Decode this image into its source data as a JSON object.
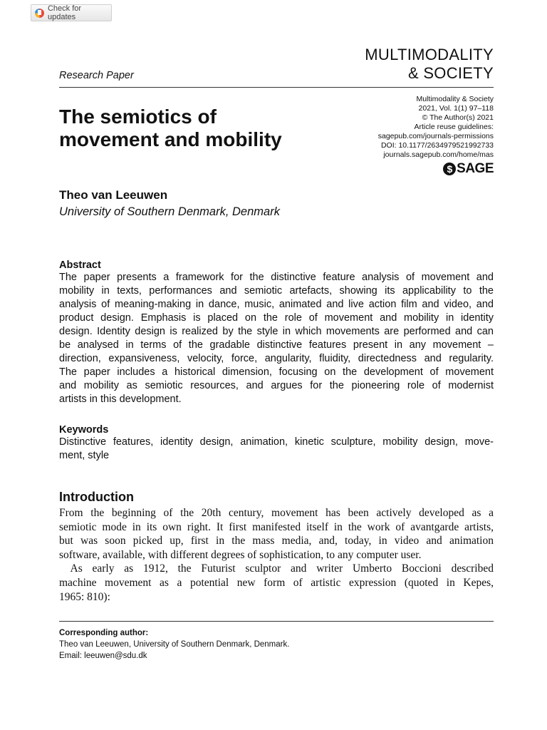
{
  "badge": {
    "label": "Check for updates",
    "icon": "check-for-updates-icon"
  },
  "journal": {
    "line1": "MULTIMODALITY",
    "line2": "& SOCIETY"
  },
  "article_type": "Research Paper",
  "meta": {
    "lines": [
      "Multimodality & Society",
      "2021, Vol. 1(1) 97–118",
      "© The Author(s) 2021",
      "Article reuse guidelines:",
      "sagepub.com/journals-permissions",
      "DOI: 10.1177/2634979521992733",
      "journals.sagepub.com/home/mas"
    ],
    "publisher_logo": "SAGE"
  },
  "title": {
    "lines": [
      "The semiotics of",
      "movement and mobility"
    ]
  },
  "author": {
    "name": "Theo van Leeuwen",
    "affiliation": "University of Southern Denmark, Denmark"
  },
  "abstract": {
    "heading": "Abstract",
    "lines": [
      "The paper presents a framework for the distinctive feature analysis of movement and",
      "mobility in texts, performances and semiotic artefacts, showing its applicability to the",
      "analysis of meaning-making in dance, music, animated and live action film and video, and",
      "product design. Emphasis is placed on the role of movement and mobility in identity",
      "design. Identity design is realized by the style in which movements are performed and can",
      "be analysed in terms of the gradable distinctive features present in any movement –",
      "direction, expansiveness, velocity, force, angularity, fluidity, directedness and regularity.",
      "The paper includes a historical dimension, focusing on the development of movement",
      "and mobility as semiotic resources, and argues for the pioneering role of modernist",
      "artists in this development."
    ]
  },
  "keywords": {
    "heading": "Keywords",
    "lines": [
      "Distinctive features, identity design, animation, kinetic sculpture, mobility design, move-",
      "ment, style"
    ]
  },
  "introduction": {
    "heading": "Introduction",
    "lines": [
      "From the beginning of the 20th century, movement has been actively developed as a",
      "semiotic mode in its own right. It first manifested itself in the work of avantgarde artists,",
      "but was soon picked up, first in the mass media, and, today, in video and animation",
      "software, available, with different degrees of sophistication, to any computer user.",
      " As early as 1912, the Futurist sculptor and writer Umberto Boccioni described",
      "machine movement as a potential new form of artistic expression (quoted in Kepes,",
      "1965: 810):"
    ],
    "paragraph_ends": [
      3,
      6
    ]
  },
  "footnote": {
    "heading": "Corresponding author:",
    "line1": "Theo van Leeuwen, University of Southern Denmark, Denmark.",
    "line2": "Email: leeuwen@sdu.dk"
  }
}
